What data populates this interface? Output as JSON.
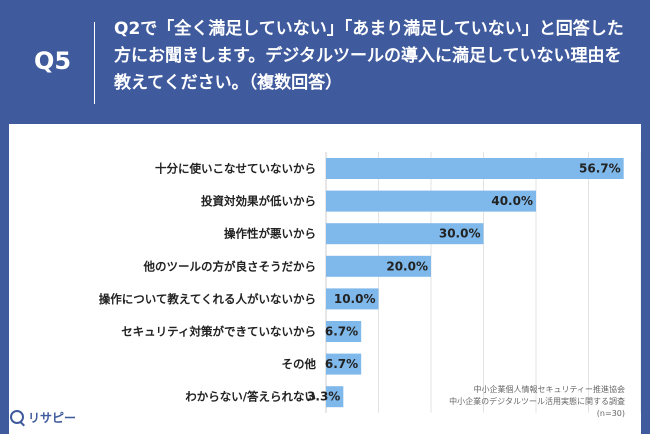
{
  "header": {
    "question_number": "Q5",
    "question_text": "Q2で「全く満足していない」「あまり満足していない」と回答した方にお聞きします。デジタルツールの導入に満足していない理由を教えてください。（複数回答）"
  },
  "chart_data": {
    "type": "bar",
    "orientation": "horizontal",
    "categories": [
      "十分に使いこなせていないから",
      "投資対効果が低いから",
      "操作性が悪いから",
      "他のツールの方が良さそうだから",
      "操作について教えてくれる人がいないから",
      "セキュリティ対策ができていないから",
      "その他",
      "わからない/答えられない"
    ],
    "values": [
      56.7,
      40.0,
      30.0,
      20.0,
      10.0,
      6.7,
      6.7,
      3.3
    ],
    "value_labels": [
      "56.7%",
      "40.0%",
      "30.0%",
      "20.0%",
      "10.0%",
      "6.7%",
      "6.7%",
      "3.3%"
    ],
    "xlim": [
      0,
      60
    ],
    "grid": true,
    "bar_color": "#7fb8ea"
  },
  "source": {
    "line1": "中小企業個人情報セキュリティー推進協会",
    "line2": "中小企業のデジタルツール活用実態に関する調査",
    "line3": "(n=30)"
  },
  "logo": {
    "text": "リサピー",
    "icon": "magnifier-icon"
  }
}
